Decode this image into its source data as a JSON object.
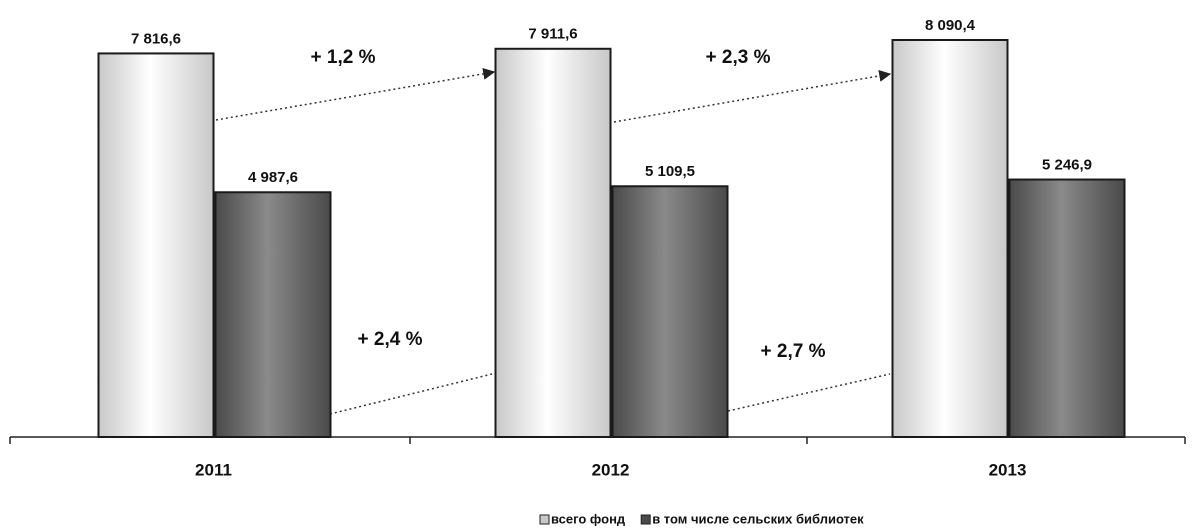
{
  "chart_data": {
    "type": "bar",
    "categories": [
      "2011",
      "2012",
      "2013"
    ],
    "series": [
      {
        "name": "всего фонд",
        "color": "#c8c8c8",
        "values": [
          7816.6,
          7911.6,
          8090.4
        ],
        "value_labels": [
          "7 816,6",
          "7 911,6",
          "8 090,4"
        ]
      },
      {
        "name": "в том числе сельских библиотек",
        "color": "#4a4a4a",
        "values": [
          4987.6,
          5109.5,
          5246.9
        ],
        "value_labels": [
          "4 987,6",
          "5 109,5",
          "5 246,9"
        ]
      }
    ],
    "annotations": [
      "+ 1,2 %",
      "+ 2,3 %",
      "+ 2,4 %",
      "+ 2,7 %"
    ],
    "legend": "bottom"
  }
}
